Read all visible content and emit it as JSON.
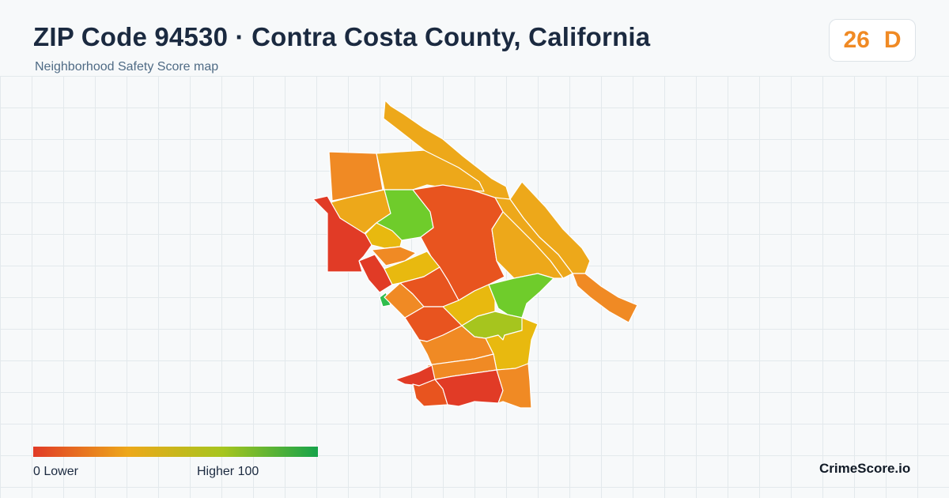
{
  "header": {
    "title": "ZIP Code 94530 · Contra Costa County, California",
    "subtitle": "Neighborhood Safety Score map"
  },
  "score_badge": {
    "score": "26",
    "grade": "D",
    "color": "#f08a24"
  },
  "map": {
    "region_colors": {
      "red": "#e13b26",
      "red_orange": "#e8541f",
      "orange": "#f08a24",
      "amber": "#eda81a",
      "yellow": "#e8b90f",
      "yellow_green": "#a6c51e",
      "green": "#6fcc2b",
      "bright_green": "#2fbd4d"
    }
  },
  "legend": {
    "low_label": "0  Lower",
    "high_label": "Higher  100",
    "gradient_colors": [
      "#e13b26",
      "#eda81a",
      "#a6c51e",
      "#16a34a"
    ]
  },
  "brand": "CrimeScore.io"
}
